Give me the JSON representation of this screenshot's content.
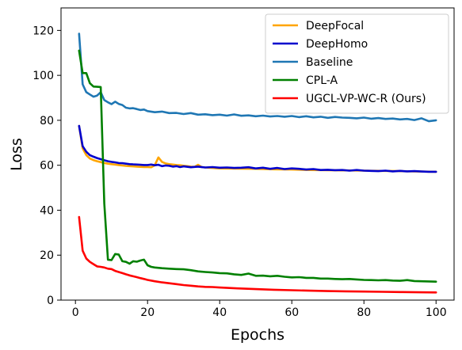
{
  "chart_data": {
    "type": "line",
    "xlabel": "Epochs",
    "ylabel": "Loss",
    "xlim": [
      -4,
      105
    ],
    "ylim": [
      0,
      130
    ],
    "xticks": [
      0,
      20,
      40,
      60,
      80,
      100
    ],
    "yticks": [
      0,
      20,
      40,
      60,
      80,
      100,
      120
    ],
    "grid": false,
    "legend_position": "top-right",
    "series": [
      {
        "name": "DeepFocal",
        "color": "#ffa500",
        "x": [
          1,
          2,
          3,
          4,
          5,
          6,
          7,
          8,
          9,
          10,
          11,
          12,
          13,
          14,
          15,
          16,
          17,
          18,
          19,
          20,
          21,
          22,
          23,
          24,
          25,
          26,
          27,
          28,
          29,
          30,
          31,
          32,
          33,
          34,
          35,
          36,
          37,
          38,
          39,
          40,
          45,
          50,
          55,
          60,
          65,
          70,
          75,
          80,
          85,
          90,
          95,
          100
        ],
        "y": [
          77.5,
          67.5,
          64.5,
          63,
          62.3,
          61.8,
          61.4,
          61,
          60.7,
          60.5,
          60.3,
          60.1,
          59.9,
          59.7,
          59.6,
          59.5,
          59.4,
          59.3,
          59.2,
          59.2,
          59.1,
          60,
          63.5,
          61.5,
          60.8,
          60.5,
          60.3,
          60.1,
          60,
          59.8,
          59.6,
          59.4,
          59.3,
          60.2,
          59.2,
          59,
          58.9,
          58.8,
          58.7,
          58.6,
          58.5,
          58.4,
          58.2,
          58.1,
          57.9,
          57.8,
          57.7,
          57.6,
          57.5,
          57.4,
          57.2,
          57.1
        ]
      },
      {
        "name": "DeepHomo",
        "color": "#0000cd",
        "x": [
          1,
          2,
          3,
          4,
          5,
          6,
          7,
          8,
          9,
          10,
          11,
          12,
          13,
          14,
          15,
          16,
          17,
          18,
          19,
          20,
          21,
          22,
          23,
          24,
          25,
          26,
          27,
          28,
          29,
          30,
          32,
          34,
          36,
          38,
          40,
          42,
          44,
          46,
          48,
          50,
          52,
          54,
          56,
          58,
          60,
          62,
          64,
          66,
          68,
          70,
          72,
          74,
          76,
          78,
          80,
          82,
          84,
          86,
          88,
          90,
          92,
          94,
          96,
          98,
          100
        ],
        "y": [
          77.5,
          68.5,
          66,
          64.5,
          63.8,
          63.2,
          62.7,
          62.2,
          61.8,
          61.5,
          61.3,
          61,
          60.9,
          60.7,
          60.5,
          60.4,
          60.3,
          60.2,
          60.1,
          60.1,
          60.3,
          60,
          60.2,
          59.6,
          59.9,
          59.8,
          59.4,
          59.6,
          59.2,
          59.5,
          59.1,
          59.4,
          59,
          59.2,
          58.9,
          59,
          58.8,
          58.9,
          59.1,
          58.6,
          58.9,
          58.4,
          58.8,
          58.3,
          58.6,
          58.4,
          58.1,
          58.3,
          57.9,
          58,
          57.8,
          57.9,
          57.6,
          57.9,
          57.6,
          57.5,
          57.4,
          57.6,
          57.3,
          57.5,
          57.3,
          57.4,
          57.2,
          57.1,
          57.1
        ]
      },
      {
        "name": "Baseline",
        "color": "#1f77b4",
        "x": [
          1,
          2,
          3,
          4,
          5,
          6,
          7,
          8,
          9,
          10,
          11,
          12,
          13,
          14,
          15,
          16,
          17,
          18,
          19,
          20,
          22,
          24,
          26,
          28,
          30,
          32,
          34,
          36,
          38,
          40,
          42,
          44,
          46,
          48,
          50,
          52,
          54,
          56,
          58,
          60,
          62,
          64,
          66,
          68,
          70,
          72,
          74,
          76,
          78,
          80,
          82,
          84,
          86,
          88,
          90,
          92,
          94,
          96,
          98,
          100
        ],
        "y": [
          118.5,
          96,
          92.5,
          91.5,
          90.5,
          91,
          92.5,
          89,
          88,
          87.2,
          88.3,
          87.3,
          86.8,
          85.6,
          85.3,
          85.4,
          85,
          84.6,
          84.8,
          84.1,
          83.6,
          83.9,
          83.2,
          83.3,
          82.8,
          83.2,
          82.5,
          82.7,
          82.3,
          82.5,
          82.1,
          82.6,
          82,
          82.2,
          81.8,
          82.1,
          81.7,
          81.9,
          81.6,
          81.9,
          81.4,
          81.8,
          81.3,
          81.6,
          81.1,
          81.5,
          81.2,
          81.1,
          80.9,
          81.2,
          80.7,
          81,
          80.6,
          80.8,
          80.4,
          80.6,
          80.1,
          80.9,
          79.6,
          80
        ]
      },
      {
        "name": "CPL-A",
        "color": "#008000",
        "x": [
          1,
          2,
          3,
          4,
          5,
          6,
          7,
          8,
          9,
          10,
          11,
          12,
          13,
          14,
          15,
          16,
          17,
          18,
          19,
          20,
          21,
          22,
          24,
          26,
          28,
          30,
          32,
          34,
          36,
          38,
          40,
          42,
          44,
          46,
          48,
          50,
          52,
          54,
          56,
          58,
          60,
          62,
          64,
          66,
          68,
          70,
          72,
          74,
          76,
          78,
          80,
          82,
          84,
          86,
          88,
          90,
          92,
          94,
          96,
          98,
          100
        ],
        "y": [
          111,
          101,
          101,
          96.5,
          95,
          94.9,
          94.8,
          43,
          18,
          17.8,
          20.5,
          20.3,
          17.3,
          17,
          16.2,
          17.3,
          17.1,
          17.6,
          18,
          15.5,
          14.8,
          14.5,
          14.2,
          14,
          13.8,
          13.7,
          13.3,
          12.8,
          12.5,
          12.3,
          12,
          11.9,
          11.5,
          11.2,
          11.8,
          10.8,
          10.9,
          10.6,
          10.8,
          10.4,
          10.1,
          10.2,
          9.9,
          9.9,
          9.6,
          9.6,
          9.4,
          9.3,
          9.4,
          9.2,
          9,
          8.9,
          8.8,
          8.9,
          8.7,
          8.6,
          8.9,
          8.5,
          8.4,
          8.3,
          8.2
        ]
      },
      {
        "name": "UGCL-VP-WC-R (Ours)",
        "color": "#ff0000",
        "x": [
          1,
          2,
          3,
          4,
          5,
          6,
          7,
          8,
          9,
          10,
          11,
          12,
          13,
          14,
          15,
          16,
          17,
          18,
          19,
          20,
          22,
          24,
          26,
          28,
          30,
          32,
          34,
          36,
          38,
          40,
          45,
          50,
          55,
          60,
          65,
          70,
          75,
          80,
          85,
          90,
          95,
          100
        ],
        "y": [
          37,
          22,
          18.5,
          17,
          16,
          15,
          14.8,
          14.5,
          14,
          13.8,
          13,
          12.5,
          12,
          11.5,
          11,
          10.6,
          10.2,
          9.8,
          9.4,
          9,
          8.4,
          7.9,
          7.5,
          7.1,
          6.7,
          6.4,
          6.1,
          5.9,
          5.8,
          5.6,
          5.2,
          4.9,
          4.6,
          4.4,
          4.2,
          4,
          3.9,
          3.8,
          3.7,
          3.6,
          3.5,
          3.4
        ]
      }
    ]
  }
}
